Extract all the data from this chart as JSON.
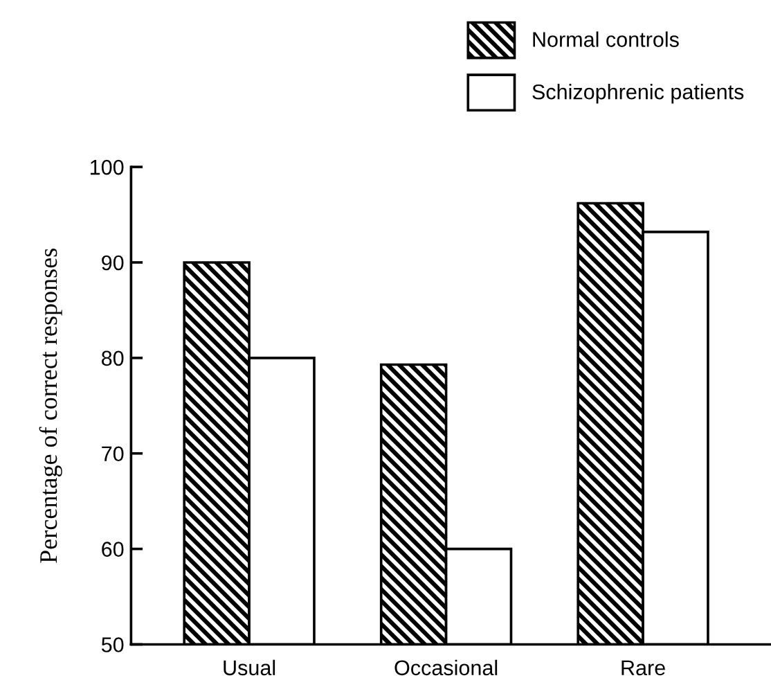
{
  "chart_data": {
    "type": "bar",
    "ylabel": "Percentage of correct responses",
    "categories": [
      "Usual",
      "Occasional",
      "Rare"
    ],
    "series": [
      {
        "name": "Normal controls",
        "color": "#000000",
        "values": [
          90,
          79.3,
          96.2
        ]
      },
      {
        "name": "Schizophrenic patients",
        "color": "#ffffff",
        "values": [
          80,
          60,
          93.2
        ]
      }
    ],
    "ylim": [
      50,
      100
    ],
    "yticks": [
      50,
      60,
      70,
      80,
      90,
      100
    ],
    "grid": false,
    "legend": "top right"
  }
}
